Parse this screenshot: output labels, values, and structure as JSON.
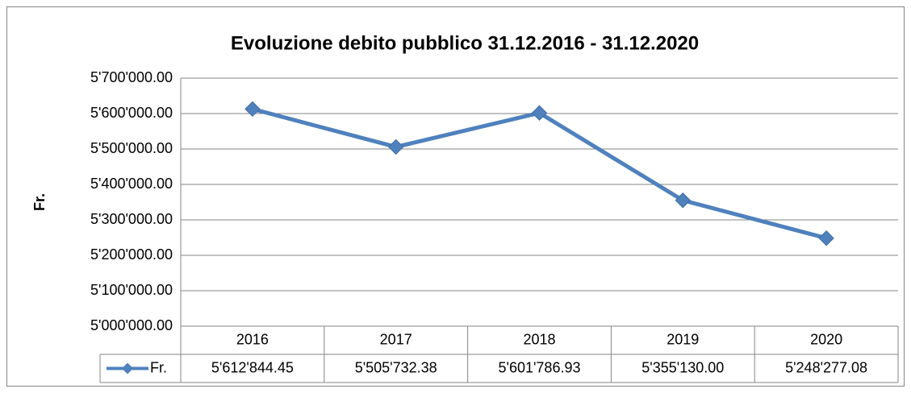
{
  "chart_data": {
    "type": "line",
    "title": "Evoluzione debito pubblico 31.12.2016 - 31.12.2020",
    "y_label": "Fr.",
    "categories": [
      "2016",
      "2017",
      "2018",
      "2019",
      "2020"
    ],
    "series": [
      {
        "name": "Fr.",
        "color": "#4f81bd",
        "values": [
          5612844.45,
          5505732.38,
          5601786.93,
          5355130.0,
          5248277.08
        ],
        "value_labels": [
          "5'612'844.45",
          "5'505'732.38",
          "5'601'786.93",
          "5'355'130.00",
          "5'248'277.08"
        ]
      }
    ],
    "ylim": [
      5000000,
      5700000
    ],
    "yticks": [
      {
        "value": 5000000,
        "label": "5'000'000.00"
      },
      {
        "value": 5100000,
        "label": "5'100'000.00"
      },
      {
        "value": 5200000,
        "label": "5'200'000.00"
      },
      {
        "value": 5300000,
        "label": "5'300'000.00"
      },
      {
        "value": 5400000,
        "label": "5'400'000.00"
      },
      {
        "value": 5500000,
        "label": "5'500'000.00"
      },
      {
        "value": 5600000,
        "label": "5'600'000.00"
      },
      {
        "value": 5700000,
        "label": "5'700'000.00"
      }
    ],
    "grid": true
  }
}
